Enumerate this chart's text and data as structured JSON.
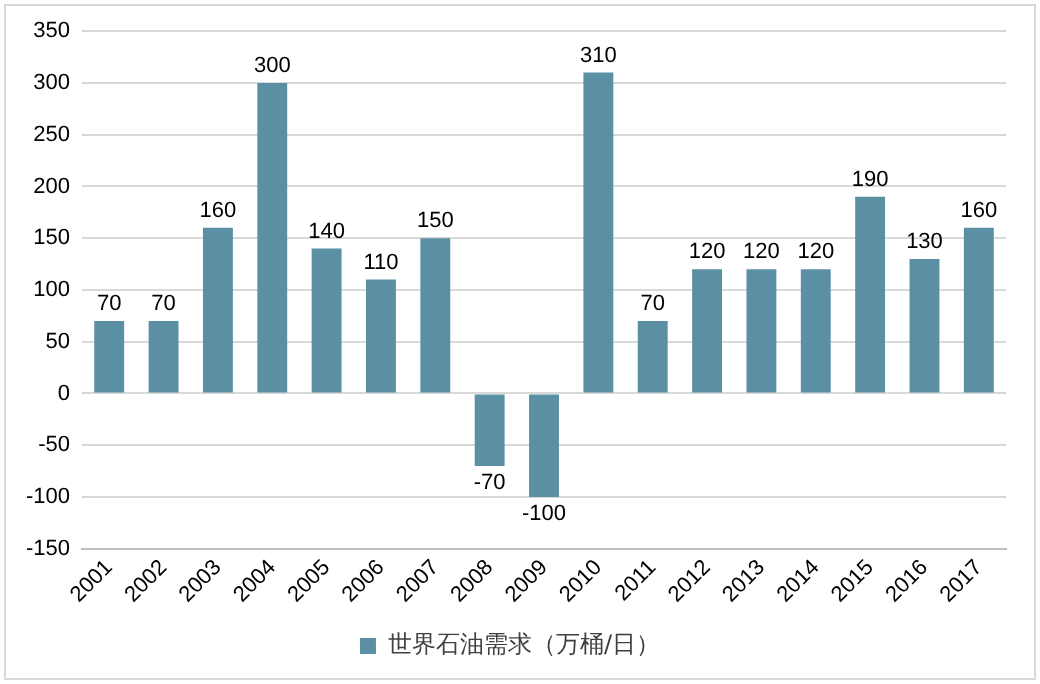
{
  "chart_data": {
    "type": "bar",
    "categories": [
      "2001",
      "2002",
      "2003",
      "2004",
      "2005",
      "2006",
      "2007",
      "2008",
      "2009",
      "2010",
      "2011",
      "2012",
      "2013",
      "2014",
      "2015",
      "2016",
      "2017"
    ],
    "series": [
      {
        "name": "世界石油需求（万桶/日）",
        "color": "#5b8fa3",
        "values": [
          70,
          70,
          160,
          300,
          140,
          110,
          150,
          -70,
          -100,
          310,
          70,
          120,
          120,
          120,
          190,
          130,
          160
        ]
      }
    ],
    "ylim": [
      -150,
      350
    ],
    "yticks": [
      -150,
      -100,
      -50,
      0,
      50,
      100,
      150,
      200,
      250,
      300,
      350
    ],
    "grid": "y",
    "legend": "bottom",
    "data_labels": true
  }
}
